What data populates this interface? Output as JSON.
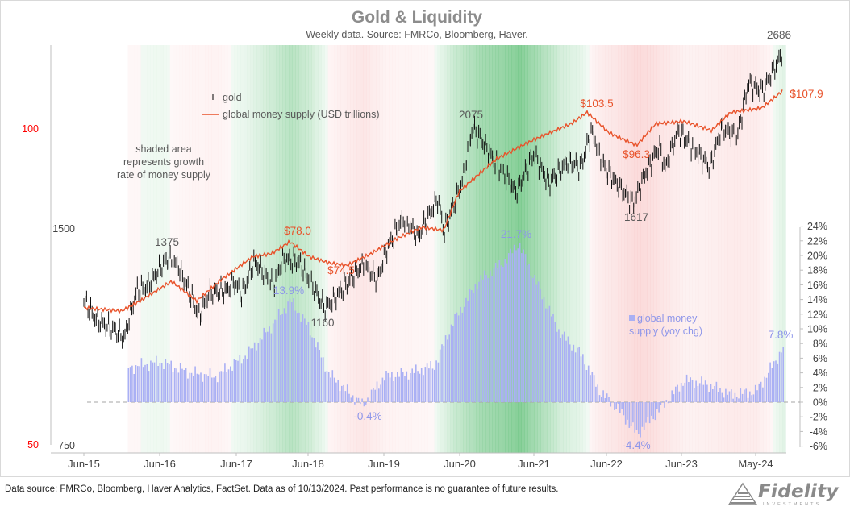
{
  "chart_data": {
    "type": "line",
    "title": "Gold & Liquidity",
    "subtitle": "Weekly data.  Source: FMRCo, Bloomberg, Haver.",
    "legend": {
      "gold": "gold",
      "money": "global money supply (USD trillions)",
      "growth_line1": "global money",
      "growth_line2": "supply (yoy chg)"
    },
    "shading_note": [
      "shaded area",
      "represents growth",
      "rate of money supply"
    ],
    "x_ticks": [
      "Jun-15",
      "Jun-16",
      "Jun-17",
      "Jun-18",
      "Jun-19",
      "Jun-20",
      "Jun-21",
      "Jun-22",
      "Jun-23",
      "May-24"
    ],
    "left_axis_gold": {
      "ticks": [
        "1500",
        "750"
      ],
      "scale": "log"
    },
    "left_axis_money": {
      "ticks": [
        "100",
        "50"
      ],
      "color": "#ff0000",
      "scale": "log"
    },
    "right_axis": {
      "ticks": [
        "24%",
        "22%",
        "20%",
        "18%",
        "16%",
        "14%",
        "12%",
        "10%",
        "8%",
        "6%",
        "4%",
        "2%",
        "0%",
        "-2%",
        "-4%",
        "-6%"
      ],
      "ylim": [
        -6,
        24
      ]
    },
    "series": [
      {
        "name": "gold",
        "color": "#000000",
        "points": [
          [
            "2015-06-01",
            1190
          ],
          [
            "2015-08-01",
            1120
          ],
          [
            "2015-11-01",
            1080
          ],
          [
            "2015-12-15",
            1055
          ],
          [
            "2016-02-15",
            1230
          ],
          [
            "2016-04-01",
            1240
          ],
          [
            "2016-07-10",
            1360
          ],
          [
            "2016-09-01",
            1330
          ],
          [
            "2016-12-15",
            1130
          ],
          [
            "2017-02-01",
            1220
          ],
          [
            "2017-05-01",
            1230
          ],
          [
            "2017-06-01",
            1265
          ],
          [
            "2017-07-10",
            1210
          ],
          [
            "2017-09-08",
            1350
          ],
          [
            "2017-12-10",
            1245
          ],
          [
            "2018-01-25",
            1360
          ],
          [
            "2018-04-15",
            1345
          ],
          [
            "2018-08-16",
            1160
          ],
          [
            "2018-10-01",
            1195
          ],
          [
            "2019-02-15",
            1330
          ],
          [
            "2019-05-01",
            1275
          ],
          [
            "2019-06-15",
            1400
          ],
          [
            "2019-09-04",
            1550
          ],
          [
            "2019-11-15",
            1460
          ],
          [
            "2020-02-20",
            1650
          ],
          [
            "2020-03-19",
            1480
          ],
          [
            "2020-06-15",
            1730
          ],
          [
            "2020-08-06",
            2075
          ],
          [
            "2020-11-15",
            1870
          ],
          [
            "2021-03-08",
            1680
          ],
          [
            "2021-06-01",
            1905
          ],
          [
            "2021-08-10",
            1730
          ],
          [
            "2021-11-15",
            1860
          ],
          [
            "2022-01-15",
            1820
          ],
          [
            "2022-03-08",
            2050
          ],
          [
            "2022-05-15",
            1810
          ],
          [
            "2022-09-28",
            1617
          ],
          [
            "2022-11-15",
            1760
          ],
          [
            "2023-02-01",
            1950
          ],
          [
            "2023-03-01",
            1815
          ],
          [
            "2023-05-04",
            2050
          ],
          [
            "2023-10-05",
            1820
          ],
          [
            "2023-12-04",
            2070
          ],
          [
            "2024-02-15",
            2000
          ],
          [
            "2024-04-12",
            2390
          ],
          [
            "2024-06-15",
            2320
          ],
          [
            "2024-08-15",
            2500
          ],
          [
            "2024-10-08",
            2686
          ]
        ]
      },
      {
        "name": "global money supply (USD trillions)",
        "color": "#e8522a",
        "points": [
          [
            "2015-06-01",
            67.5
          ],
          [
            "2015-12-01",
            67.0
          ],
          [
            "2016-03-01",
            68.5
          ],
          [
            "2016-08-01",
            71.5
          ],
          [
            "2016-12-01",
            68.5
          ],
          [
            "2017-04-01",
            71.8
          ],
          [
            "2017-09-01",
            75.5
          ],
          [
            "2017-12-01",
            76.0
          ],
          [
            "2018-03-01",
            78.0
          ],
          [
            "2018-06-01",
            75.5
          ],
          [
            "2018-09-01",
            74.5
          ],
          [
            "2018-12-01",
            74.0
          ],
          [
            "2019-04-01",
            76.0
          ],
          [
            "2019-08-01",
            78.5
          ],
          [
            "2019-12-01",
            80.5
          ],
          [
            "2020-03-19",
            80.0
          ],
          [
            "2020-06-01",
            87.0
          ],
          [
            "2020-12-01",
            93.5
          ],
          [
            "2021-06-01",
            97.5
          ],
          [
            "2021-12-01",
            101.0
          ],
          [
            "2022-02-15",
            103.5
          ],
          [
            "2022-06-01",
            99.0
          ],
          [
            "2022-10-15",
            96.3
          ],
          [
            "2023-01-15",
            101.0
          ],
          [
            "2023-06-01",
            101.5
          ],
          [
            "2023-10-15",
            99.5
          ],
          [
            "2024-01-15",
            103.5
          ],
          [
            "2024-06-15",
            104.5
          ],
          [
            "2024-09-25",
            108.5
          ],
          [
            "2024-10-08",
            107.9
          ]
        ]
      },
      {
        "name": "global money supply (yoy chg)",
        "color": "#aab0f4",
        "unit": "%",
        "points": [
          [
            "2016-01-01",
            4.7
          ],
          [
            "2016-06-01",
            5.5
          ],
          [
            "2016-11-01",
            4.0
          ],
          [
            "2017-03-01",
            3.5
          ],
          [
            "2017-08-01",
            6.5
          ],
          [
            "2017-12-01",
            10.5
          ],
          [
            "2018-03-01",
            13.9
          ],
          [
            "2018-06-01",
            10.0
          ],
          [
            "2018-09-01",
            4.0
          ],
          [
            "2018-12-01",
            1.5
          ],
          [
            "2019-02-15",
            -0.4
          ],
          [
            "2019-06-01",
            3.5
          ],
          [
            "2019-10-01",
            4.0
          ],
          [
            "2020-02-01",
            5.0
          ],
          [
            "2020-05-01",
            11.0
          ],
          [
            "2020-09-01",
            16.5
          ],
          [
            "2021-01-15",
            19.5
          ],
          [
            "2021-03-15",
            21.7
          ],
          [
            "2021-07-01",
            15.0
          ],
          [
            "2021-10-01",
            9.5
          ],
          [
            "2022-01-15",
            6.5
          ],
          [
            "2022-04-15",
            1.5
          ],
          [
            "2022-07-15",
            -1.0
          ],
          [
            "2022-10-15",
            -4.4
          ],
          [
            "2023-02-15",
            -0.5
          ],
          [
            "2023-06-01",
            3.0
          ],
          [
            "2023-09-15",
            2.5
          ],
          [
            "2024-01-15",
            1.0
          ],
          [
            "2024-05-15",
            1.5
          ],
          [
            "2024-08-15",
            5.5
          ],
          [
            "2024-10-01",
            7.8
          ]
        ]
      }
    ],
    "annotations": [
      {
        "text": "2686",
        "color": "#595959"
      },
      {
        "text": "2075",
        "color": "#595959"
      },
      {
        "text": "1375",
        "color": "#595959"
      },
      {
        "text": "1160",
        "color": "#595959"
      },
      {
        "text": "1617",
        "color": "#595959"
      },
      {
        "text": "$78.0",
        "color": "#e8522a"
      },
      {
        "text": "$74.5",
        "color": "#e8522a"
      },
      {
        "text": "$103.5",
        "color": "#e8522a"
      },
      {
        "text": "$96.3",
        "color": "#e8522a"
      },
      {
        "text": "$107.9",
        "color": "#e8522a"
      },
      {
        "text": "13.9%",
        "color": "#8e96ea"
      },
      {
        "text": "-0.4%",
        "color": "#8e96ea"
      },
      {
        "text": "21.7%",
        "color": "#8e96ea"
      },
      {
        "text": "-4.4%",
        "color": "#8e96ea"
      },
      {
        "text": "7.8%",
        "color": "#8e96ea"
      }
    ],
    "shading": {
      "high_color": "#1aa33b",
      "low_color": "#f08080"
    },
    "grid": false
  },
  "footer": {
    "note": "Data source: FMRCo, Bloomberg, Haver Analytics, FactSet. Data as of 10/13/2024. Past performance is no guarantee of future results.",
    "logo_text": "Fidelity",
    "logo_sub": "INVESTMENTS"
  }
}
